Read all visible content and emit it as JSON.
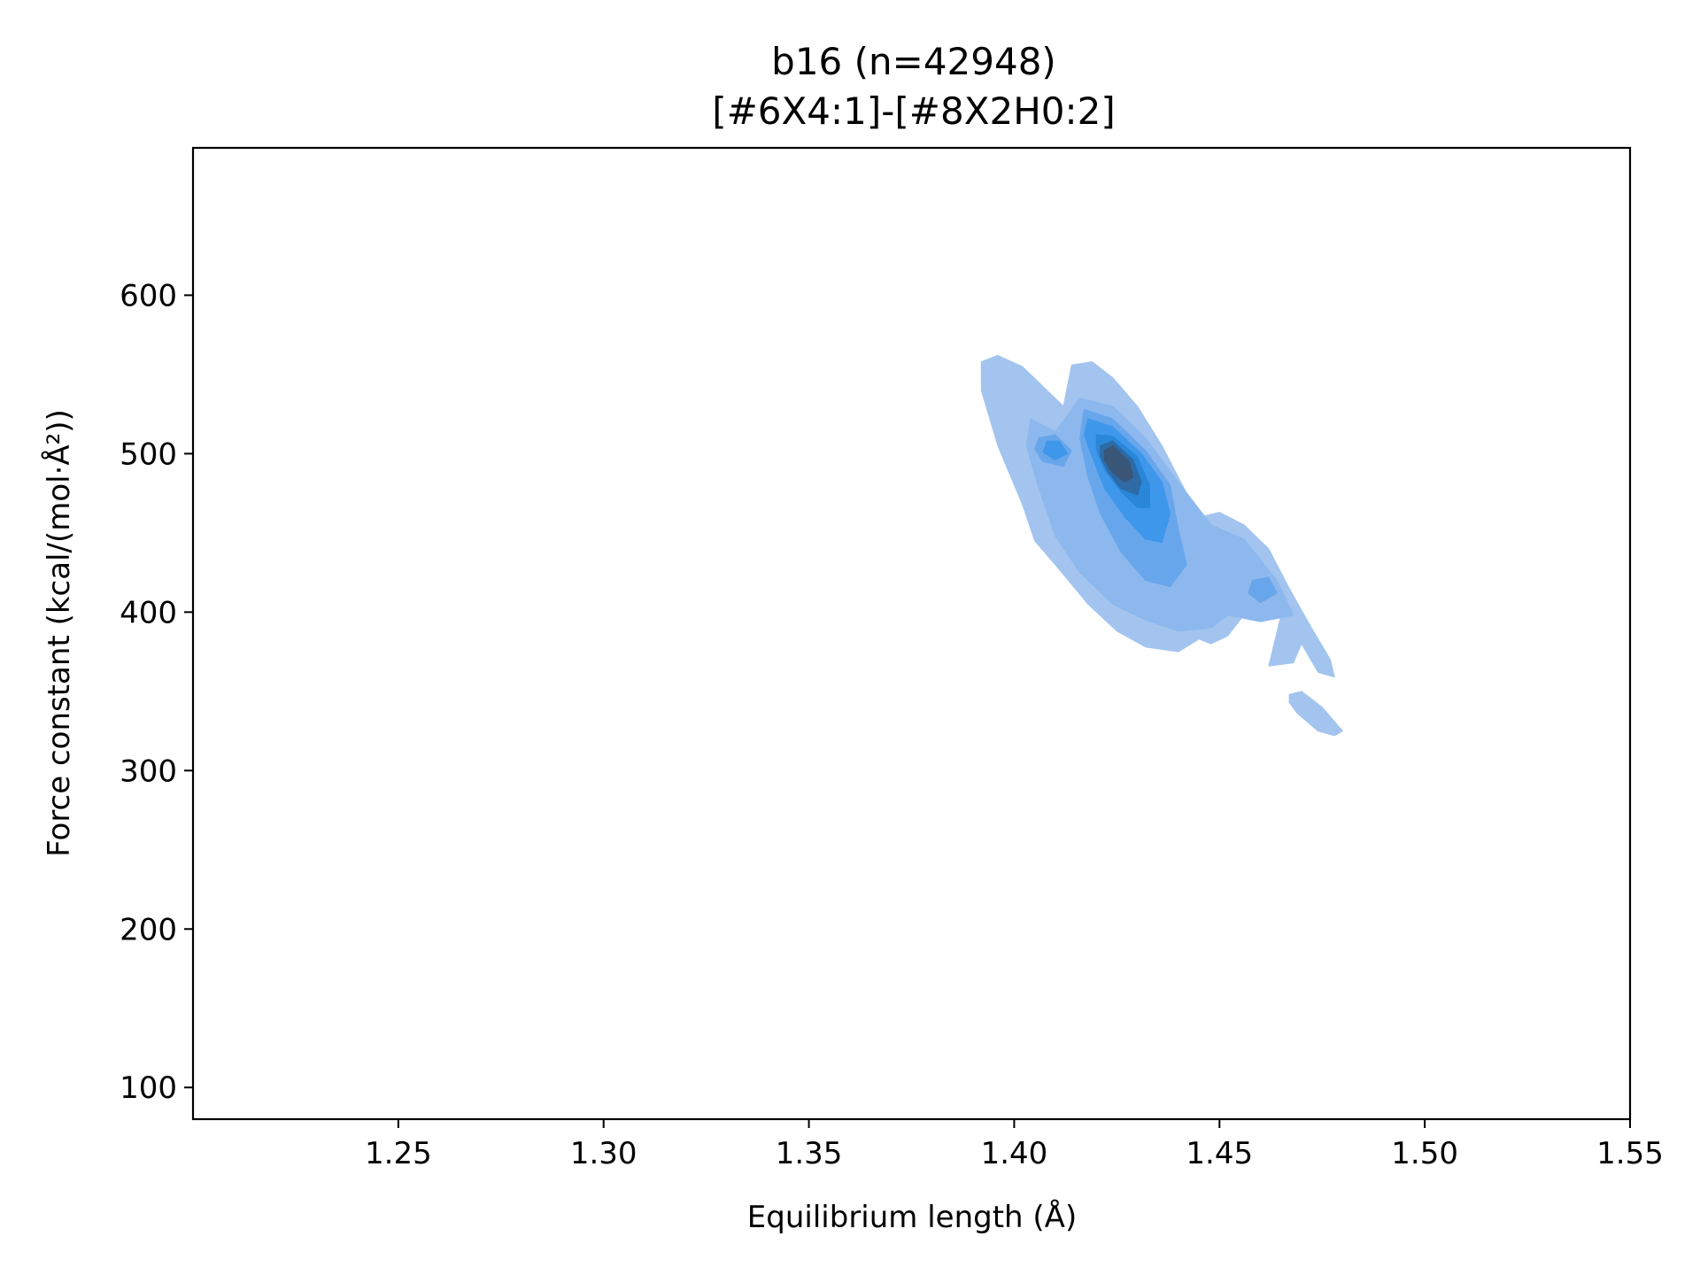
{
  "chart_data": {
    "type": "kde-contour",
    "title": "b16 (n=42948)",
    "subtitle": "[#6X4:1]-[#8X2H0:2]",
    "xlabel": "Equilibrium length (Å)",
    "ylabel": "Force constant (kcal/(mol·Å²))",
    "xlim": [
      1.2,
      1.55
    ],
    "ylim": [
      80,
      693
    ],
    "x_ticks": [
      1.25,
      1.3,
      1.35,
      1.4,
      1.45,
      1.5,
      1.55
    ],
    "x_tick_labels": [
      "1.25",
      "1.30",
      "1.35",
      "1.40",
      "1.45",
      "1.50",
      "1.55"
    ],
    "y_ticks": [
      100,
      200,
      300,
      400,
      500,
      600
    ],
    "y_tick_labels": [
      "100",
      "200",
      "300",
      "400",
      "500",
      "600"
    ],
    "grid": false,
    "colors": {
      "level1": "#a2c4ef",
      "level2": "#8cb8ee",
      "level3": "#68a6ec",
      "level4": "#3e97ea",
      "level5": "#2a86d8",
      "level6": "#2d6aa6",
      "level7": "#3a5676"
    },
    "density_levels": [
      {
        "level": 1,
        "regions": [
          [
            [
              1.392,
              558
            ],
            [
              1.396,
              562
            ],
            [
              1.402,
              555
            ],
            [
              1.408,
              540
            ],
            [
              1.412,
              530
            ],
            [
              1.414,
              556
            ],
            [
              1.419,
              558
            ],
            [
              1.424,
              548
            ],
            [
              1.43,
              530
            ],
            [
              1.436,
              505
            ],
            [
              1.441,
              480
            ],
            [
              1.445,
              460
            ],
            [
              1.45,
              463
            ],
            [
              1.456,
              455
            ],
            [
              1.462,
              440
            ],
            [
              1.467,
              415
            ],
            [
              1.472,
              392
            ],
            [
              1.477,
              370
            ],
            [
              1.478,
              359
            ],
            [
              1.474,
              362
            ],
            [
              1.47,
              380
            ],
            [
              1.468,
              368
            ],
            [
              1.462,
              366
            ],
            [
              1.465,
              398
            ],
            [
              1.459,
              410
            ],
            [
              1.455,
              395
            ],
            [
              1.452,
              385
            ],
            [
              1.448,
              380
            ],
            [
              1.445,
              383
            ],
            [
              1.44,
              375
            ],
            [
              1.432,
              378
            ],
            [
              1.425,
              388
            ],
            [
              1.418,
              405
            ],
            [
              1.41,
              430
            ],
            [
              1.405,
              445
            ],
            [
              1.402,
              468
            ],
            [
              1.396,
              505
            ],
            [
              1.392,
              540
            ]
          ],
          [
            [
              1.467,
              348
            ],
            [
              1.47,
              350
            ],
            [
              1.475,
              340
            ],
            [
              1.48,
              325
            ],
            [
              1.478,
              322
            ],
            [
              1.474,
              325
            ],
            [
              1.469,
              336
            ],
            [
              1.467,
              343
            ]
          ]
        ]
      },
      {
        "level": 2,
        "regions": [
          [
            [
              1.404,
              522
            ],
            [
              1.41,
              514
            ],
            [
              1.416,
              535
            ],
            [
              1.424,
              530
            ],
            [
              1.432,
              510
            ],
            [
              1.44,
              482
            ],
            [
              1.448,
              455
            ],
            [
              1.456,
              446
            ],
            [
              1.464,
              420
            ],
            [
              1.468,
              398
            ],
            [
              1.46,
              394
            ],
            [
              1.452,
              398
            ],
            [
              1.448,
              390
            ],
            [
              1.44,
              388
            ],
            [
              1.432,
              395
            ],
            [
              1.424,
              405
            ],
            [
              1.416,
              425
            ],
            [
              1.41,
              448
            ],
            [
              1.406,
              478
            ],
            [
              1.403,
              505
            ]
          ]
        ]
      },
      {
        "level": 3,
        "regions": [
          [
            [
              1.417,
              528
            ],
            [
              1.424,
              522
            ],
            [
              1.432,
              502
            ],
            [
              1.438,
              480
            ],
            [
              1.44,
              452
            ],
            [
              1.442,
              430
            ],
            [
              1.438,
              416
            ],
            [
              1.432,
              420
            ],
            [
              1.426,
              438
            ],
            [
              1.421,
              462
            ],
            [
              1.418,
              485
            ],
            [
              1.416,
              510
            ]
          ],
          [
            [
              1.406,
              510
            ],
            [
              1.41,
              512
            ],
            [
              1.414,
              502
            ],
            [
              1.412,
              492
            ],
            [
              1.407,
              495
            ],
            [
              1.405,
              503
            ]
          ],
          [
            [
              1.458,
              420
            ],
            [
              1.462,
              422
            ],
            [
              1.464,
              412
            ],
            [
              1.46,
              406
            ],
            [
              1.457,
              412
            ]
          ]
        ]
      },
      {
        "level": 4,
        "regions": [
          [
            [
              1.418,
              522
            ],
            [
              1.424,
              517
            ],
            [
              1.431,
              500
            ],
            [
              1.436,
              482
            ],
            [
              1.438,
              462
            ],
            [
              1.436,
              444
            ],
            [
              1.432,
              446
            ],
            [
              1.427,
              460
            ],
            [
              1.422,
              478
            ],
            [
              1.419,
              498
            ],
            [
              1.417,
              512
            ]
          ],
          [
            [
              1.408,
              508
            ],
            [
              1.411,
              508
            ],
            [
              1.413,
              500
            ],
            [
              1.41,
              496
            ],
            [
              1.407,
              501
            ]
          ]
        ]
      },
      {
        "level": 5,
        "regions": [
          [
            [
              1.42,
              512
            ],
            [
              1.424,
              511
            ],
            [
              1.43,
              498
            ],
            [
              1.433,
              480
            ],
            [
              1.433,
              466
            ],
            [
              1.43,
              466
            ],
            [
              1.426,
              476
            ],
            [
              1.422,
              490
            ],
            [
              1.42,
              503
            ]
          ]
        ]
      },
      {
        "level": 6,
        "regions": [
          [
            [
              1.421,
              505
            ],
            [
              1.424,
              508
            ],
            [
              1.429,
              496
            ],
            [
              1.431,
              482
            ],
            [
              1.43,
              474
            ],
            [
              1.426,
              478
            ],
            [
              1.423,
              488
            ],
            [
              1.421,
              498
            ]
          ]
        ]
      },
      {
        "level": 7,
        "regions": [
          [
            [
              1.422,
              502
            ],
            [
              1.424,
              505
            ],
            [
              1.428,
              495
            ],
            [
              1.429,
              485
            ],
            [
              1.427,
              482
            ],
            [
              1.424,
              488
            ],
            [
              1.422,
              496
            ]
          ]
        ]
      }
    ]
  }
}
